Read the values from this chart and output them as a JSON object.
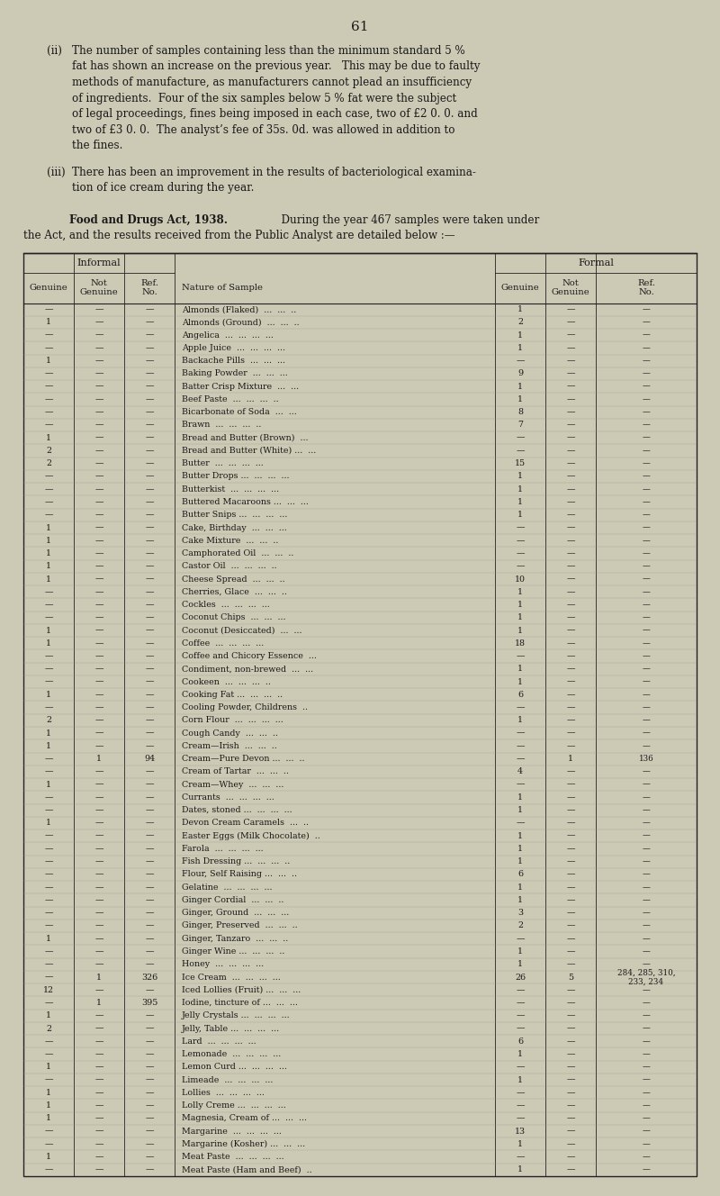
{
  "page_number": "61",
  "bg_color": "#ccc9b5",
  "text_color": "#1a1a1a",
  "table_rows": [
    [
      "—",
      "—",
      "—",
      "Almonds (Flaked)  ...  ...  ..",
      "1",
      "—",
      "—"
    ],
    [
      "1",
      "—",
      "—",
      "Almonds (Ground)  ...  ...  ..",
      "2",
      "—",
      "—"
    ],
    [
      "—",
      "—",
      "—",
      "Angelica  ...  ...  ...  ...",
      "1",
      "—",
      "—"
    ],
    [
      "—",
      "—",
      "—",
      "Apple Juice  ...  ...  ...  ...",
      "1",
      "—",
      "—"
    ],
    [
      "1",
      "—",
      "—",
      "Backache Pills  ...  ...  ...",
      "—",
      "—",
      "—"
    ],
    [
      "—",
      "—",
      "—",
      "Baking Powder  ...  ...  ...",
      "9",
      "—",
      "—"
    ],
    [
      "—",
      "—",
      "—",
      "Batter Crisp Mixture  ...  ...",
      "1",
      "—",
      "—"
    ],
    [
      "—",
      "—",
      "—",
      "Beef Paste  ...  ...  ...  ..",
      "1",
      "—",
      "—"
    ],
    [
      "—",
      "—",
      "—",
      "Bicarbonate of Soda  ...  ...",
      "8",
      "—",
      "—"
    ],
    [
      "—",
      "—",
      "—",
      "Brawn  ...  ...  ...  ..",
      "7",
      "—",
      "—"
    ],
    [
      "1",
      "—",
      "—",
      "Bread and Butter (Brown)  ...",
      "—",
      "—",
      "—"
    ],
    [
      "2",
      "—",
      "—",
      "Bread and Butter (White) ...  ...",
      "—",
      "—",
      "—"
    ],
    [
      "2",
      "—",
      "—",
      "Butter  ...  ...  ...  ...",
      "15",
      "—",
      "—"
    ],
    [
      "—",
      "—",
      "—",
      "Butter Drops ...  ...  ...  ...",
      "1",
      "—",
      "—"
    ],
    [
      "—",
      "—",
      "—",
      "Butterkist  ...  ...  ...  ...",
      "1",
      "—",
      "—"
    ],
    [
      "—",
      "—",
      "—",
      "Buttered Macaroons ...  ...  ...",
      "1",
      "—",
      "—"
    ],
    [
      "—",
      "—",
      "—",
      "Butter Snips ...  ...  ...  ...",
      "1",
      "—",
      "—"
    ],
    [
      "1",
      "—",
      "—",
      "Cake, Birthday  ...  ...  ...",
      "—",
      "—",
      "—"
    ],
    [
      "1",
      "—",
      "—",
      "Cake Mixture  ...  ...  ..",
      "—",
      "—",
      "—"
    ],
    [
      "1",
      "—",
      "—",
      "Camphorated Oil  ...  ...  ..",
      "—",
      "—",
      "—"
    ],
    [
      "1",
      "—",
      "—",
      "Castor Oil  ...  ...  ...  ..",
      "—",
      "—",
      "—"
    ],
    [
      "1",
      "—",
      "—",
      "Cheese Spread  ...  ...  ..",
      "10",
      "—",
      "—"
    ],
    [
      "—",
      "—",
      "—",
      "Cherries, Glace  ...  ...  ..",
      "1",
      "—",
      "—"
    ],
    [
      "—",
      "—",
      "—",
      "Cockles  ...  ...  ...  ...",
      "1",
      "—",
      "—"
    ],
    [
      "—",
      "—",
      "—",
      "Coconut Chips  ...  ...  ...",
      "1",
      "—",
      "—"
    ],
    [
      "1",
      "—",
      "—",
      "Coconut (Desiccated)  ...  ...",
      "1",
      "—",
      "—"
    ],
    [
      "1",
      "—",
      "—",
      "Coffee  ...  ...  ...  ...",
      "18",
      "—",
      "—"
    ],
    [
      "—",
      "—",
      "—",
      "Coffee and Chicory Essence  ...",
      "—",
      "—",
      "—"
    ],
    [
      "—",
      "—",
      "—",
      "Condiment, non-brewed  ...  ...",
      "1",
      "—",
      "—"
    ],
    [
      "—",
      "—",
      "—",
      "Cookeen  ...  ...  ...  ..",
      "1",
      "—",
      "—"
    ],
    [
      "1",
      "—",
      "—",
      "Cooking Fat ...  ...  ...  ..",
      "6",
      "—",
      "—"
    ],
    [
      "—",
      "—",
      "—",
      "Cooling Powder, Childrens  ..",
      "—",
      "—",
      "—"
    ],
    [
      "2",
      "—",
      "—",
      "Corn Flour  ...  ...  ...  ...",
      "1",
      "—",
      "—"
    ],
    [
      "1",
      "—",
      "—",
      "Cough Candy  ...  ...  ..",
      "—",
      "—",
      "—"
    ],
    [
      "1",
      "—",
      "—",
      "Cream—Irish  ...  ...  ..",
      "—",
      "—",
      "—"
    ],
    [
      "—",
      "1",
      "94",
      "Cream—Pure Devon ...  ...  ..",
      "—",
      "1",
      "136"
    ],
    [
      "—",
      "—",
      "—",
      "Cream of Tartar  ...  ...  ..",
      "4",
      "—",
      "—"
    ],
    [
      "1",
      "—",
      "—",
      "Cream—Whey  ...  ...  ...",
      "—",
      "—",
      "—"
    ],
    [
      "—",
      "—",
      "—",
      "Currants  ...  ...  ...  ...",
      "1",
      "—",
      "—"
    ],
    [
      "—",
      "—",
      "—",
      "Dates, stoned ...  ...  ...  ...",
      "1",
      "—",
      "—"
    ],
    [
      "1",
      "—",
      "—",
      "Devon Cream Caramels  ...  ..",
      "—",
      "—",
      "—"
    ],
    [
      "—",
      "—",
      "—",
      "Easter Eggs (Milk Chocolate)  ..",
      "1",
      "—",
      "—"
    ],
    [
      "—",
      "—",
      "—",
      "Farola  ...  ...  ...  ...",
      "1",
      "—",
      "—"
    ],
    [
      "—",
      "—",
      "—",
      "Fish Dressing ...  ...  ...  ..",
      "1",
      "—",
      "—"
    ],
    [
      "—",
      "—",
      "—",
      "Flour, Self Raising ...  ...  ..",
      "6",
      "—",
      "—"
    ],
    [
      "—",
      "—",
      "—",
      "Gelatine  ...  ...  ...  ...",
      "1",
      "—",
      "—"
    ],
    [
      "—",
      "—",
      "—",
      "Ginger Cordial  ...  ...  ..",
      "1",
      "—",
      "—"
    ],
    [
      "—",
      "—",
      "—",
      "Ginger, Ground  ...  ...  ...",
      "3",
      "—",
      "—"
    ],
    [
      "—",
      "—",
      "—",
      "Ginger, Preserved  ...  ...  ..",
      "2",
      "—",
      "—"
    ],
    [
      "1",
      "—",
      "—",
      "Ginger, Tanzaro  ...  ...  ..",
      "—",
      "—",
      "—"
    ],
    [
      "—",
      "—",
      "—",
      "Ginger Wine ...  ...  ...  ..",
      "1",
      "—",
      "—"
    ],
    [
      "—",
      "—",
      "—",
      "Honey  ...  ...  ...  ...",
      "1",
      "—",
      "—"
    ],
    [
      "—",
      "1",
      "326",
      "Ice Cream  ...  ...  ...  ...",
      "26",
      "5",
      "284, 285, 310,\n233, 234"
    ],
    [
      "12",
      "—",
      "—",
      "Iced Lollies (Fruit) ...  ...  ...",
      "—",
      "—",
      "—"
    ],
    [
      "—",
      "1",
      "395",
      "Iodine, tincture of ...  ...  ...",
      "—",
      "—",
      "—"
    ],
    [
      "1",
      "—",
      "—",
      "Jelly Crystals ...  ...  ...  ...",
      "—",
      "—",
      "—"
    ],
    [
      "2",
      "—",
      "—",
      "Jelly, Table ...  ...  ...  ...",
      "—",
      "—",
      "—"
    ],
    [
      "—",
      "—",
      "—",
      "Lard  ...  ...  ...  ...",
      "6",
      "—",
      "—"
    ],
    [
      "—",
      "—",
      "—",
      "Lemonade  ...  ...  ...  ...",
      "1",
      "—",
      "—"
    ],
    [
      "1",
      "—",
      "—",
      "Lemon Curd ...  ...  ...  ...",
      "—",
      "—",
      "—"
    ],
    [
      "—",
      "—",
      "—",
      "Limeade  ...  ...  ...  ...",
      "1",
      "—",
      "—"
    ],
    [
      "1",
      "—",
      "—",
      "Lollies  ...  ...  ...  ...",
      "—",
      "—",
      "—"
    ],
    [
      "1",
      "—",
      "—",
      "Lolly Creme ...  ...  ...  ...",
      "—",
      "—",
      "—"
    ],
    [
      "1",
      "—",
      "—",
      "Magnesia, Cream of ...  ...  ...",
      "—",
      "—",
      "—"
    ],
    [
      "—",
      "—",
      "—",
      "Margarine  ...  ...  ...  ...",
      "13",
      "—",
      "—"
    ],
    [
      "—",
      "—",
      "—",
      "Margarine (Kosher) ...  ...  ...",
      "1",
      "—",
      "—"
    ],
    [
      "1",
      "—",
      "—",
      "Meat Paste  ...  ...  ...  ...",
      "—",
      "—",
      "—"
    ],
    [
      "—",
      "—",
      "—",
      "Meat Paste (Ham and Beef)  ..",
      "1",
      "—",
      "—"
    ]
  ]
}
